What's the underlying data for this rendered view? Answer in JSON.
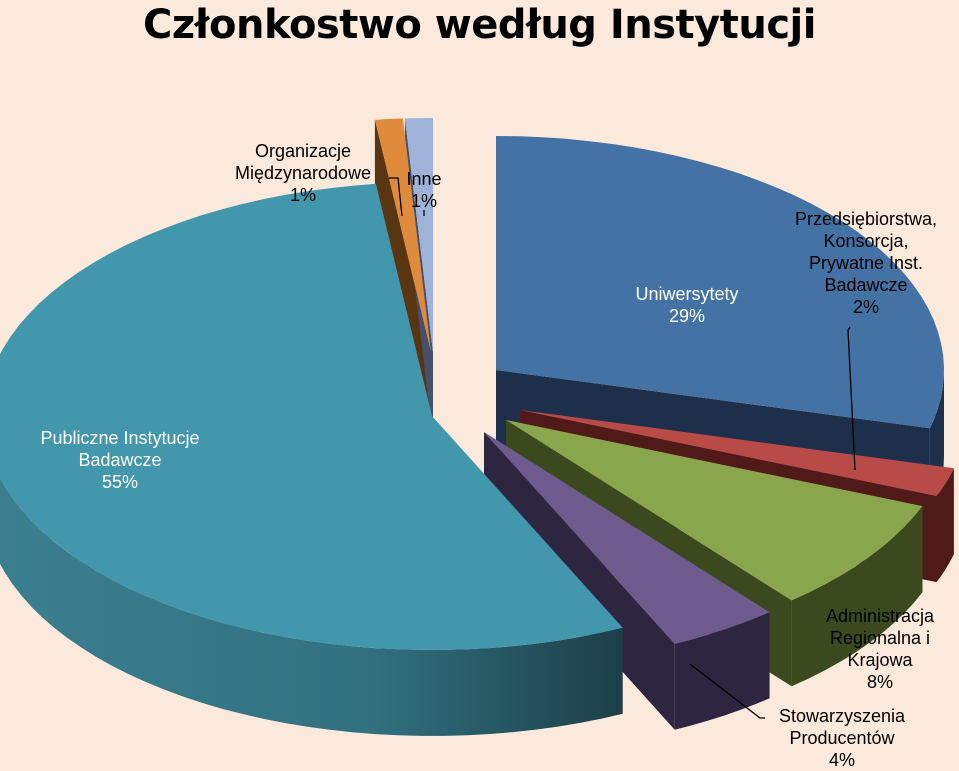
{
  "chart_data": {
    "type": "pie",
    "title": "Członkostwo według Instytucji",
    "style": "3d-exploded",
    "slices": [
      {
        "label_lines": [
          "Uniwersytety"
        ],
        "value": 29,
        "pct": "29%",
        "color": "#4472a4",
        "side": "#1e2f4c"
      },
      {
        "label_lines": [
          "Przedsiębiorstwa,",
          "Konsorcja,",
          "Prywatne Inst.",
          "Badawcze"
        ],
        "value": 2,
        "pct": "2%",
        "color": "#b84b47",
        "side": "#4f1a18"
      },
      {
        "label_lines": [
          "Administracja",
          "Regionalna i",
          "Krajowa"
        ],
        "value": 8,
        "pct": "8%",
        "color": "#8aa64c",
        "side": "#3a4a1e"
      },
      {
        "label_lines": [
          "Stowarzyszenia",
          "Producentów"
        ],
        "value": 4,
        "pct": "4%",
        "color": "#6e5a8c",
        "side": "#2e2640"
      },
      {
        "label_lines": [
          "Publiczne Instytucje",
          "Badawcze"
        ],
        "value": 55,
        "pct": "55%",
        "color": "#4297ad",
        "side": "#23525e"
      },
      {
        "label_lines": [
          "Organizacje",
          "Międzynarodowe"
        ],
        "value": 1,
        "pct": "1%",
        "color": "#e08a3c",
        "side": "#5a3512"
      },
      {
        "label_lines": [
          "Inne"
        ],
        "value": 1,
        "pct": "1%",
        "color": "#9fb2d8",
        "side": "#46506a"
      }
    ]
  }
}
